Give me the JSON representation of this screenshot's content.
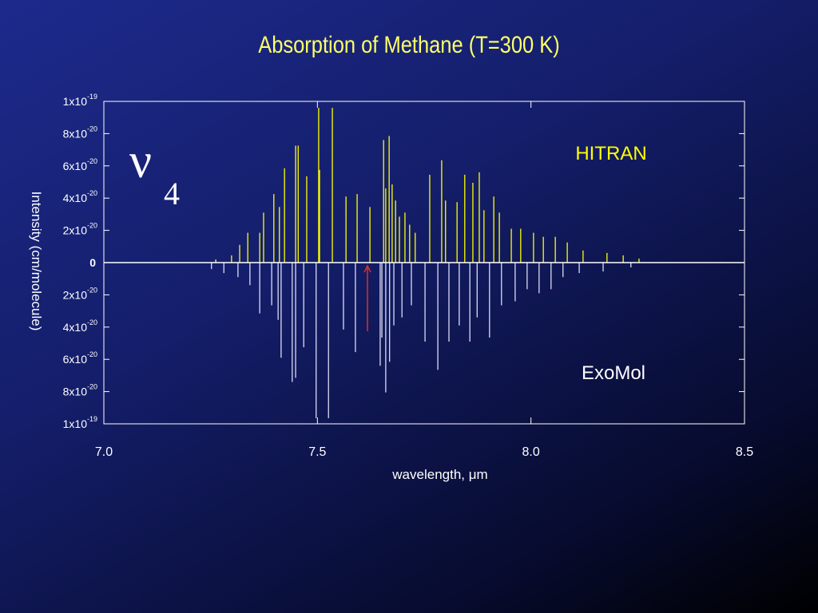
{
  "chart_data": {
    "type": "stick",
    "title": "Absorption of Methane (T=300 K)",
    "xlabel": "wavelength, μm",
    "ylabel": "Intensity (cm/molecule)",
    "annotations": {
      "band": "ν",
      "band_sub": "4"
    },
    "xlim": [
      7.0,
      8.5
    ],
    "xticks": [
      {
        "value": 7.0,
        "label": "7.0"
      },
      7.5,
      {
        "value": 8.0,
        "label": "8.0"
      },
      8.5
    ],
    "ylim": [
      -1e-19,
      1e-19
    ],
    "yticks": [
      {
        "value": -1e-19,
        "label": "1x10",
        "exponent": "-19"
      },
      {
        "value": -8e-20,
        "label": "8x10",
        "exponent": "-20"
      },
      {
        "value": -6e-20,
        "label": "6x10",
        "exponent": "-20"
      },
      {
        "value": -4e-20,
        "label": "4x10",
        "exponent": "-20"
      },
      {
        "value": -2e-20,
        "label": "2x10",
        "exponent": "-20"
      },
      0,
      {
        "value": 2e-20,
        "label": "2x10",
        "exponent": "-20"
      },
      {
        "value": 4e-20,
        "label": "4x10",
        "exponent": "-20"
      },
      {
        "value": 6e-20,
        "label": "6x10",
        "exponent": "-20"
      },
      {
        "value": 8e-20,
        "label": "8x10",
        "exponent": "-20"
      },
      {
        "value": 1e-19,
        "label": "1x10",
        "exponent": "-19"
      }
    ],
    "series": [
      {
        "name": "HITRAN",
        "color": "#ffff00",
        "x": [
          7.503,
          7.535,
          7.449,
          7.455,
          7.423,
          7.475,
          7.505,
          7.398,
          7.374,
          7.365,
          7.337,
          7.318,
          7.411,
          7.567,
          7.593,
          7.623,
          7.655,
          7.668,
          7.66,
          7.675,
          7.683,
          7.692,
          7.705,
          7.716,
          7.729,
          7.763,
          7.791,
          7.8,
          7.827,
          7.845,
          7.864,
          7.879,
          7.89,
          7.913,
          7.926,
          7.954,
          7.976,
          8.006,
          8.029,
          8.057,
          8.085,
          8.122,
          8.178,
          8.216,
          7.262,
          7.299,
          8.253
        ],
        "values": [
          9.6e-20,
          9.6e-20,
          7.25e-20,
          7.25e-20,
          5.85e-20,
          5.35e-20,
          5.75e-20,
          4.25e-20,
          3.1e-20,
          1.85e-20,
          1.85e-20,
          1.1e-20,
          3.45e-20,
          4.1e-20,
          4.25e-20,
          3.45e-20,
          7.6e-20,
          7.85e-20,
          4.6e-20,
          4.85e-20,
          3.85e-20,
          2.85e-20,
          3.1e-20,
          2.35e-20,
          1.85e-20,
          5.45e-20,
          6.35e-20,
          3.85e-20,
          3.75e-20,
          5.45e-20,
          4.95e-20,
          5.6e-20,
          3.25e-20,
          4.1e-20,
          3.1e-20,
          2.1e-20,
          2.1e-20,
          1.85e-20,
          1.6e-20,
          1.6e-20,
          1.25e-20,
          7.5e-21,
          6e-21,
          4.5e-21,
          2e-21,
          4.5e-21,
          2.5e-21
        ]
      },
      {
        "name": "ExoMol",
        "color": "#dcdcf5",
        "x": [
          7.497,
          7.526,
          7.441,
          7.449,
          7.415,
          7.468,
          7.408,
          7.393,
          7.365,
          7.342,
          7.314,
          7.561,
          7.589,
          7.647,
          7.66,
          7.669,
          7.651,
          7.679,
          7.698,
          7.72,
          7.752,
          7.782,
          7.808,
          7.832,
          7.857,
          7.874,
          7.903,
          7.931,
          7.963,
          7.991,
          8.019,
          8.047,
          8.075,
          8.113,
          8.169,
          7.281,
          7.252,
          8.234
        ],
        "values": [
          -9.65e-20,
          -9.65e-20,
          -7.4e-20,
          -7.15e-20,
          -5.9e-20,
          -5.25e-20,
          -3.55e-20,
          -2.65e-20,
          -3.15e-20,
          -1.4e-20,
          -9e-21,
          -4.15e-20,
          -5.55e-20,
          -6.4e-20,
          -8.05e-20,
          -6.15e-20,
          -4.65e-20,
          -3.9e-20,
          -3.4e-20,
          -2.65e-20,
          -4.9e-20,
          -6.65e-20,
          -4.9e-20,
          -3.9e-20,
          -4.9e-20,
          -3.4e-20,
          -4.65e-20,
          -2.65e-20,
          -2.4e-20,
          -1.65e-20,
          -1.9e-20,
          -1.65e-20,
          -9e-21,
          -6.5e-21,
          -5.5e-21,
          -6.5e-21,
          -4e-21,
          -3e-21
        ]
      }
    ]
  }
}
